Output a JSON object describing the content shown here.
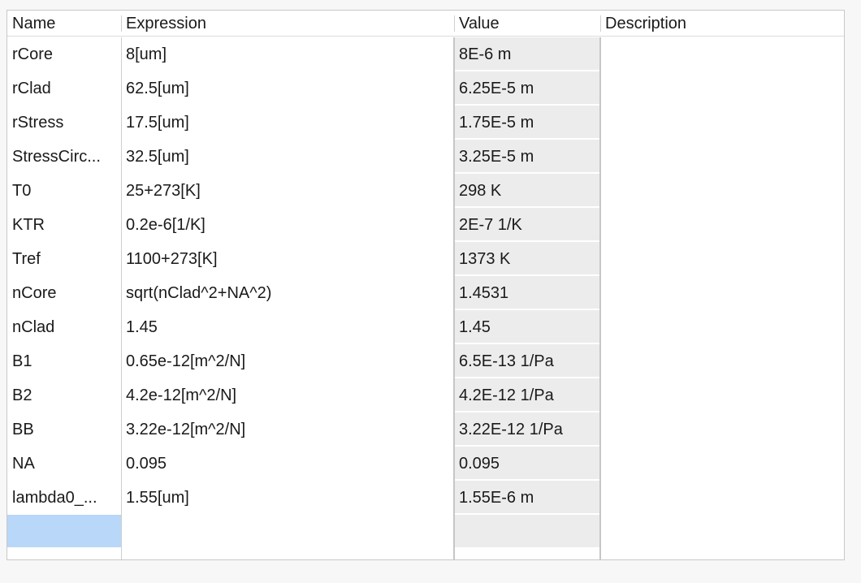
{
  "table": {
    "columns": {
      "name": "Name",
      "expression": "Expression",
      "value": "Value",
      "description": "Description"
    },
    "rows": [
      {
        "name": "rCore",
        "expression": "8[um]",
        "value": "8E-6 m",
        "description": ""
      },
      {
        "name": "rClad",
        "expression": "62.5[um]",
        "value": "6.25E-5 m",
        "description": ""
      },
      {
        "name": "rStress",
        "expression": "17.5[um]",
        "value": "1.75E-5 m",
        "description": ""
      },
      {
        "name": "StressCirc...",
        "expression": "32.5[um]",
        "value": "3.25E-5 m",
        "description": ""
      },
      {
        "name": "T0",
        "expression": "25+273[K]",
        "value": "298 K",
        "description": ""
      },
      {
        "name": "KTR",
        "expression": "0.2e-6[1/K]",
        "value": "2E-7 1/K",
        "description": ""
      },
      {
        "name": "Tref",
        "expression": "1100+273[K]",
        "value": "1373 K",
        "description": ""
      },
      {
        "name": "nCore",
        "expression": "sqrt(nClad^2+NA^2)",
        "value": "1.4531",
        "description": ""
      },
      {
        "name": "nClad",
        "expression": "1.45",
        "value": "1.45",
        "description": ""
      },
      {
        "name": "B1",
        "expression": "0.65e-12[m^2/N]",
        "value": "6.5E-13 1/Pa",
        "description": ""
      },
      {
        "name": "B2",
        "expression": "4.2e-12[m^2/N]",
        "value": "4.2E-12 1/Pa",
        "description": ""
      },
      {
        "name": "BB",
        "expression": "3.22e-12[m^2/N]",
        "value": "3.22E-12 1/Pa",
        "description": ""
      },
      {
        "name": "NA",
        "expression": "0.095",
        "value": "0.095",
        "description": ""
      },
      {
        "name": "lambda0_...",
        "expression": "1.55[um]",
        "value": "1.55E-6 m",
        "description": ""
      }
    ],
    "empty_row": {
      "name": "",
      "expression": "",
      "value": "",
      "description": ""
    }
  },
  "colors": {
    "value_cell_bg": "#ececec",
    "selected_cell_bg": "#b9d7f8",
    "grid_line": "#cfcfcf"
  }
}
